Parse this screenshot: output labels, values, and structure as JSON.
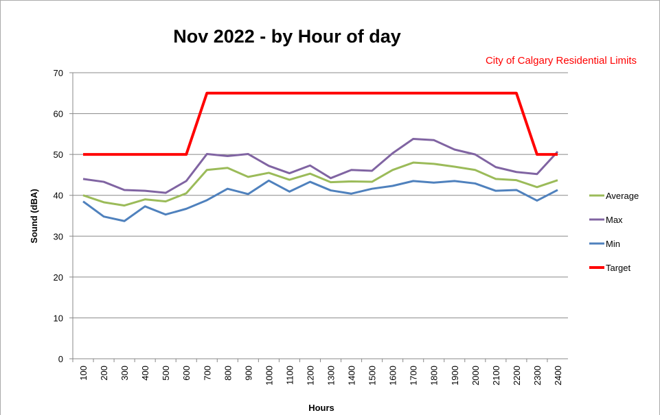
{
  "chart_data": {
    "type": "line",
    "title": "Nov 2022  - by Hour of day",
    "annotation": "City of Calgary Residential Limits",
    "x_label": "Hours",
    "y_label": "Sound (dBA)",
    "categories": [
      "100",
      "200",
      "300",
      "400",
      "500",
      "600",
      "700",
      "800",
      "900",
      "1000",
      "1100",
      "1200",
      "1300",
      "1400",
      "1500",
      "1600",
      "1700",
      "1800",
      "1900",
      "2000",
      "2100",
      "2200",
      "2300",
      "2400"
    ],
    "series": [
      {
        "name": "Average",
        "color": "#9bbb59",
        "values": [
          40,
          38.3,
          37.5,
          39,
          38.5,
          40.5,
          46.2,
          46.7,
          44.5,
          45.5,
          43.8,
          45.3,
          43.2,
          43.4,
          43.3,
          46.2,
          48,
          47.7,
          47,
          46.2,
          44,
          43.7,
          42,
          43.7
        ]
      },
      {
        "name": "Max",
        "color": "#8064a2",
        "values": [
          44,
          43.3,
          41.3,
          41.1,
          40.6,
          43.5,
          50.1,
          49.6,
          50.1,
          47.2,
          45.4,
          47.3,
          44.2,
          46.2,
          46,
          50.3,
          53.8,
          53.5,
          51.2,
          50,
          46.9,
          45.7,
          45.2,
          50.7
        ]
      },
      {
        "name": "Min",
        "color": "#4f81bd",
        "values": [
          38.5,
          34.8,
          33.7,
          37.3,
          35.3,
          36.7,
          38.8,
          41.6,
          40.3,
          43.6,
          40.9,
          43.3,
          41.2,
          40.4,
          41.6,
          42.3,
          43.5,
          43.1,
          43.5,
          42.9,
          41.1,
          41.3,
          38.7,
          41.3
        ]
      },
      {
        "name": "Target",
        "color": "#ff0000",
        "values": [
          50,
          50,
          50,
          50,
          50,
          50,
          65,
          65,
          65,
          65,
          65,
          65,
          65,
          65,
          65,
          65,
          65,
          65,
          65,
          65,
          65,
          65,
          50,
          50
        ]
      }
    ],
    "ylim": [
      0,
      70
    ],
    "yticks": [
      0,
      10,
      20,
      30,
      40,
      50,
      60,
      70
    ],
    "grid": true,
    "legend": "right"
  }
}
